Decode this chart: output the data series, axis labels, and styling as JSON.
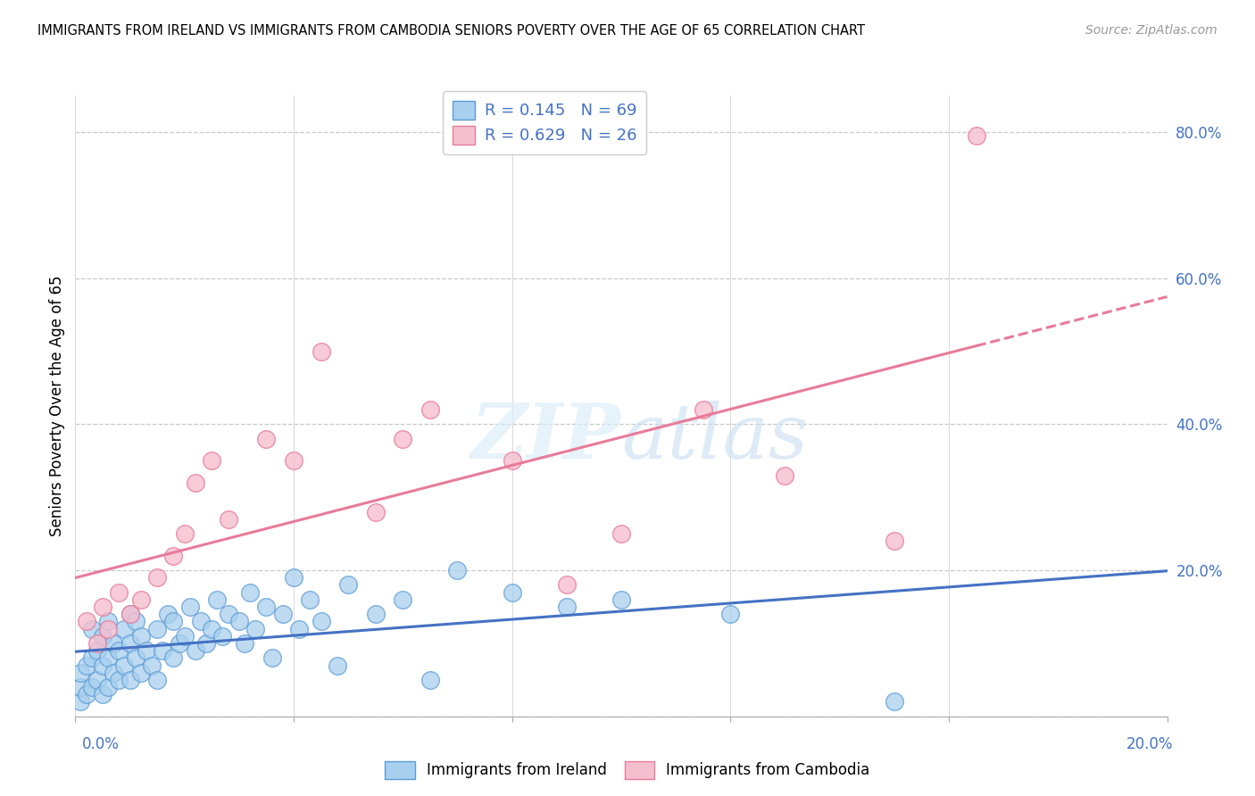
{
  "title": "IMMIGRANTS FROM IRELAND VS IMMIGRANTS FROM CAMBODIA SENIORS POVERTY OVER THE AGE OF 65 CORRELATION CHART",
  "source": "Source: ZipAtlas.com",
  "ylabel": "Seniors Poverty Over the Age of 65",
  "xlim": [
    0.0,
    0.2
  ],
  "ylim": [
    0.0,
    0.85
  ],
  "ytick_vals": [
    0.0,
    0.2,
    0.4,
    0.6,
    0.8
  ],
  "ytick_labels": [
    "",
    "20.0%",
    "40.0%",
    "60.0%",
    "80.0%"
  ],
  "ireland_color": "#a8d0ee",
  "ireland_edge": "#5B9BD5",
  "cambodia_color": "#f5bece",
  "cambodia_edge": "#e87b9a",
  "trend_ireland_color": "#4472C4",
  "trend_cambodia_color": "#e87b9a",
  "label_color": "#4472C4",
  "ireland_R": 0.145,
  "ireland_N": 69,
  "cambodia_R": 0.629,
  "cambodia_N": 26,
  "ireland_x": [
    0.001,
    0.001,
    0.001,
    0.002,
    0.002,
    0.003,
    0.003,
    0.003,
    0.004,
    0.004,
    0.005,
    0.005,
    0.005,
    0.006,
    0.006,
    0.006,
    0.007,
    0.007,
    0.008,
    0.008,
    0.009,
    0.009,
    0.01,
    0.01,
    0.01,
    0.011,
    0.011,
    0.012,
    0.012,
    0.013,
    0.014,
    0.015,
    0.015,
    0.016,
    0.017,
    0.018,
    0.018,
    0.019,
    0.02,
    0.021,
    0.022,
    0.023,
    0.024,
    0.025,
    0.026,
    0.027,
    0.028,
    0.03,
    0.031,
    0.032,
    0.033,
    0.035,
    0.036,
    0.038,
    0.04,
    0.041,
    0.043,
    0.045,
    0.048,
    0.05,
    0.055,
    0.06,
    0.065,
    0.07,
    0.08,
    0.09,
    0.1,
    0.12,
    0.15
  ],
  "ireland_y": [
    0.02,
    0.04,
    0.06,
    0.03,
    0.07,
    0.04,
    0.08,
    0.12,
    0.05,
    0.09,
    0.03,
    0.07,
    0.11,
    0.04,
    0.08,
    0.13,
    0.06,
    0.1,
    0.05,
    0.09,
    0.07,
    0.12,
    0.05,
    0.1,
    0.14,
    0.08,
    0.13,
    0.06,
    0.11,
    0.09,
    0.07,
    0.05,
    0.12,
    0.09,
    0.14,
    0.08,
    0.13,
    0.1,
    0.11,
    0.15,
    0.09,
    0.13,
    0.1,
    0.12,
    0.16,
    0.11,
    0.14,
    0.13,
    0.1,
    0.17,
    0.12,
    0.15,
    0.08,
    0.14,
    0.19,
    0.12,
    0.16,
    0.13,
    0.07,
    0.18,
    0.14,
    0.16,
    0.05,
    0.2,
    0.17,
    0.15,
    0.16,
    0.14,
    0.02
  ],
  "cambodia_x": [
    0.002,
    0.004,
    0.005,
    0.006,
    0.008,
    0.01,
    0.012,
    0.015,
    0.018,
    0.02,
    0.022,
    0.025,
    0.028,
    0.035,
    0.04,
    0.045,
    0.055,
    0.06,
    0.065,
    0.08,
    0.09,
    0.1,
    0.115,
    0.13,
    0.15,
    0.165
  ],
  "cambodia_y": [
    0.13,
    0.1,
    0.15,
    0.12,
    0.17,
    0.14,
    0.16,
    0.19,
    0.22,
    0.25,
    0.32,
    0.35,
    0.27,
    0.38,
    0.35,
    0.5,
    0.28,
    0.38,
    0.42,
    0.35,
    0.18,
    0.25,
    0.42,
    0.33,
    0.24,
    0.795
  ],
  "trend_ire_x0": 0.0,
  "trend_ire_x1": 0.2,
  "trend_cam_solid_x0": 0.0,
  "trend_cam_solid_x1": 0.165,
  "trend_cam_dash_x0": 0.165,
  "trend_cam_dash_x1": 0.2
}
